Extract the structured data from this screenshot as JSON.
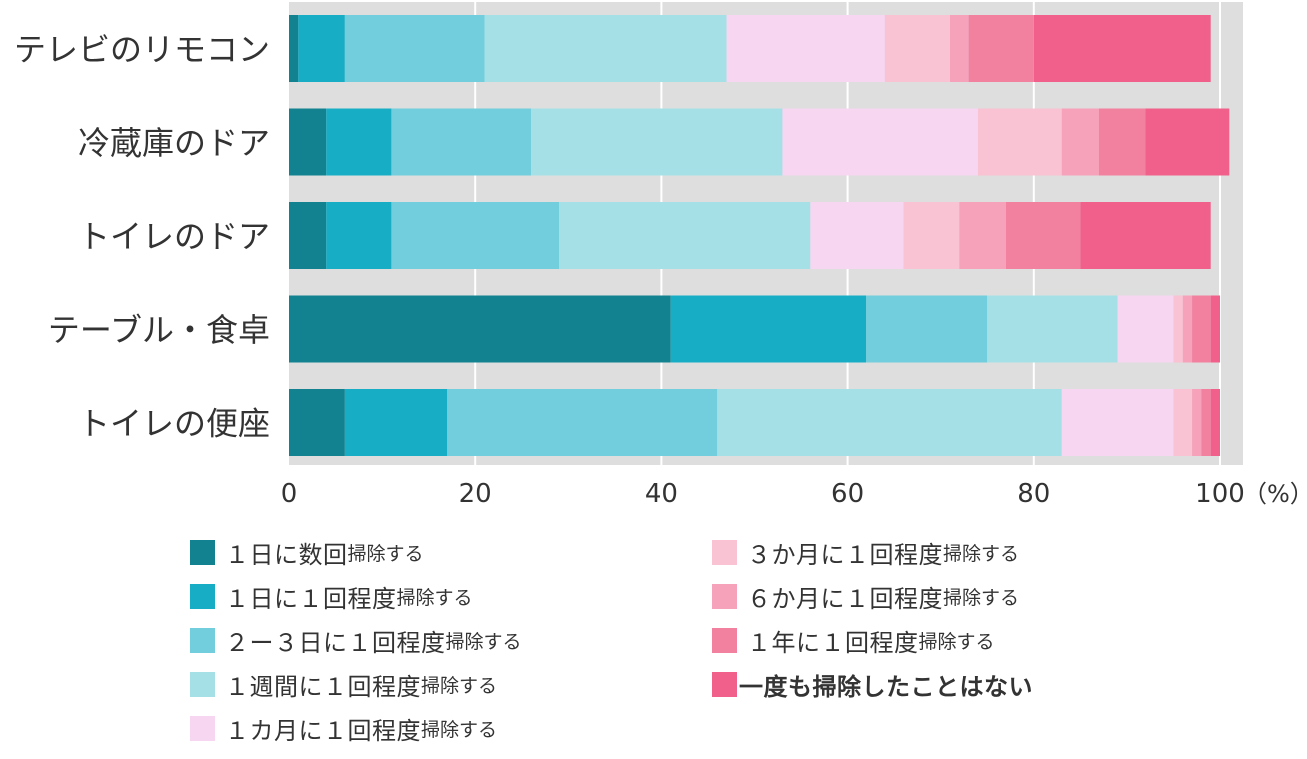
{
  "chart_data": {
    "type": "bar",
    "orientation": "horizontal",
    "stacked": true,
    "categories": [
      "テレビのリモコン",
      "冷蔵庫のドア",
      "トイレのドア",
      "テーブル・食卓",
      "トイレの便座"
    ],
    "series": [
      {
        "name": "1日に数回",
        "color": "#138290",
        "values": [
          1,
          4,
          4,
          41,
          6
        ]
      },
      {
        "name": "1日に1回程度",
        "color": "#17adc4",
        "values": [
          5,
          7,
          7,
          21,
          11
        ]
      },
      {
        "name": "2ー3日に1回程度",
        "color": "#72cedc",
        "values": [
          15,
          15,
          18,
          13,
          29
        ]
      },
      {
        "name": "1週間に1回程度",
        "color": "#a5e0e7",
        "values": [
          26,
          27,
          27,
          14,
          37
        ]
      },
      {
        "name": "1カ月に1回程度",
        "color": "#f7d6f2",
        "values": [
          17,
          21,
          10,
          6,
          12
        ]
      },
      {
        "name": "3か月に1回程度",
        "color": "#fac3d3",
        "values": [
          7,
          9,
          6,
          1,
          2
        ]
      },
      {
        "name": "6か月に1回程度",
        "color": "#f6a2ba",
        "values": [
          2,
          4,
          5,
          1,
          1
        ]
      },
      {
        "name": "1年に1回程度",
        "color": "#f2809f",
        "values": [
          7,
          5,
          8,
          2,
          1
        ]
      },
      {
        "name": "一度も掃除したことはない",
        "color": "#f0608a",
        "values": [
          19,
          9,
          14,
          1,
          1
        ]
      }
    ],
    "xlim": [
      0,
      100
    ],
    "x_ticks": [
      "0",
      "20",
      "40",
      "60",
      "80",
      "100"
    ],
    "x_unit": "（%）",
    "grid": true,
    "legend_position": "bottom"
  },
  "legend": [
    {
      "main": "１日に数回",
      "sub": "掃除する",
      "color": "#138290"
    },
    {
      "main": "１日に１回程度",
      "sub": "掃除する",
      "color": "#17adc4"
    },
    {
      "main": "２ー３日に１回程度",
      "sub": "掃除する",
      "color": "#72cedc"
    },
    {
      "main": "１週間に１回程度",
      "sub": "掃除する",
      "color": "#a5e0e7"
    },
    {
      "main": "１カ月に１回程度",
      "sub": "掃除する",
      "color": "#f7d6f2"
    },
    {
      "main": "３か月に１回程度",
      "sub": "掃除する",
      "color": "#fac3d3"
    },
    {
      "main": "６か月に１回程度",
      "sub": "掃除する",
      "color": "#f6a2ba"
    },
    {
      "main": "１年に１回程度",
      "sub": "掃除する",
      "color": "#f2809f"
    },
    {
      "main": "一度も掃除したことはない",
      "sub": "",
      "color": "#f0608a"
    }
  ]
}
